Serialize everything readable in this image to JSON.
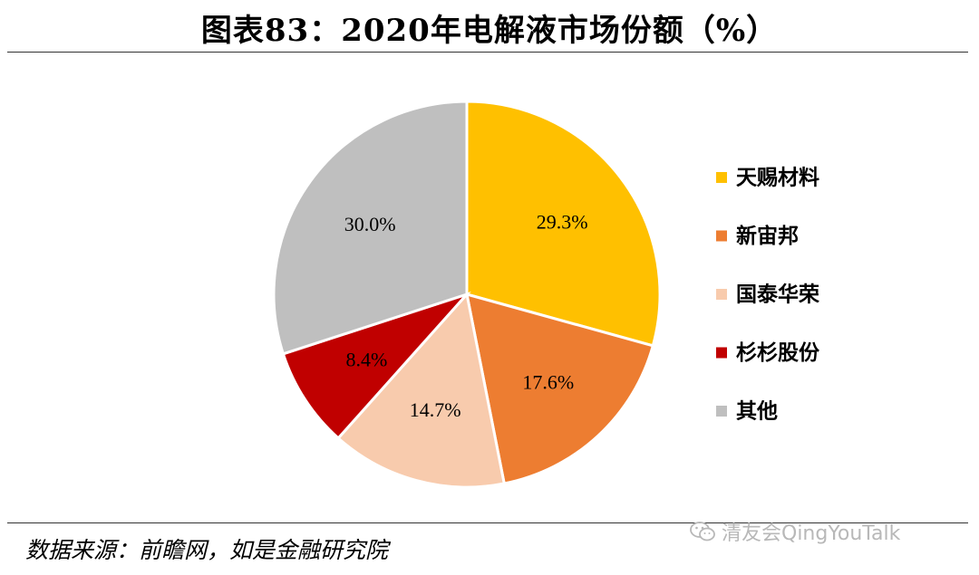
{
  "title": "图表83：2020年电解液市场份额（%）",
  "source": "数据来源：前瞻网，如是金融研究院",
  "watermark": {
    "text": "清友会QingYouTalk",
    "icon": "wechat-icon",
    "color": "#b8b8b8"
  },
  "chart_data": {
    "type": "pie",
    "title": "2020年电解液市场份额（%）",
    "legend_position": "right",
    "slices": [
      {
        "name": "天赐材料",
        "value": 29.3,
        "label": "29.3%",
        "color": "#FFC000"
      },
      {
        "name": "新宙邦",
        "value": 17.6,
        "label": "17.6%",
        "color": "#ED7D31"
      },
      {
        "name": "国泰华荣",
        "value": 14.7,
        "label": "14.7%",
        "color": "#F8CBAD"
      },
      {
        "name": "杉杉股份",
        "value": 8.4,
        "label": "8.4%",
        "color": "#C00000"
      },
      {
        "name": "其他",
        "value": 30.0,
        "label": "30.0%",
        "color": "#BFBFBF"
      }
    ]
  }
}
